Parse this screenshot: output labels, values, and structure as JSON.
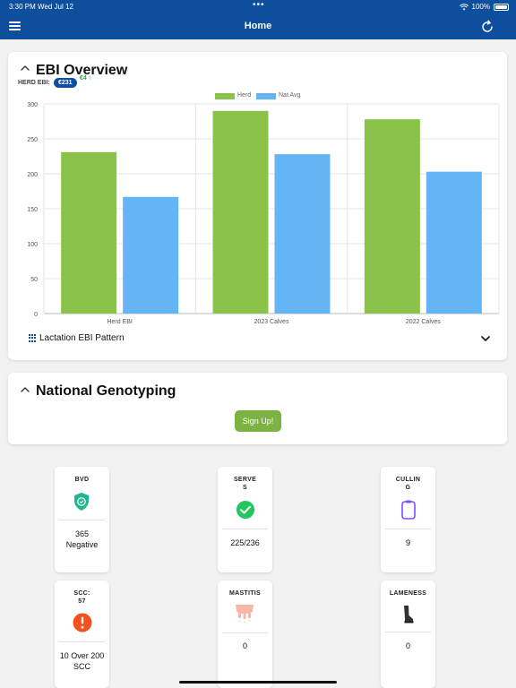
{
  "status_bar": {
    "time": "3:30 PM  Wed Jul 12",
    "dots": "•••",
    "battery": "100%"
  },
  "nav": {
    "title": "Home"
  },
  "ebi_card": {
    "title": "EBI Overview",
    "herd_ebi_label": "HERD EBI:",
    "herd_ebi_value": "€231",
    "delta": "€4",
    "lactation_label": "Lactation EBI Pattern"
  },
  "chart_data": {
    "type": "bar",
    "categories": [
      "Herd EBI",
      "2023 Calves",
      "2022 Calves"
    ],
    "series": [
      {
        "name": "Herd",
        "values": [
          231,
          290,
          278
        ],
        "color": "#8bc34a"
      },
      {
        "name": "Nat Avg",
        "values": [
          167,
          228,
          203
        ],
        "color": "#64b5f6"
      }
    ],
    "ylim": [
      0,
      300
    ],
    "yticks": [
      "0",
      "50",
      "100",
      "150",
      "200",
      "250",
      "300"
    ],
    "legend": "top-center",
    "grid": true
  },
  "genotyping_card": {
    "title": "National Genotyping",
    "signup_label": "Sign Up!"
  },
  "tiles": [
    {
      "label": "BVD",
      "value": "365\nNegative",
      "icon": "shield-check-icon"
    },
    {
      "label": "SERVE\nS",
      "value": "225/236",
      "icon": "check-circle-icon"
    },
    {
      "label": "CULLIN\nG",
      "value": "9",
      "icon": "clipboard-icon"
    },
    {
      "label": "SCC:\n57",
      "value": "10 Over 200\nSCC",
      "icon": "alert-circle-icon"
    },
    {
      "label": "MASTITIS",
      "value": "0",
      "icon": "udder-icon"
    },
    {
      "label": "LAMENESS",
      "value": "0",
      "icon": "leg-icon"
    }
  ]
}
